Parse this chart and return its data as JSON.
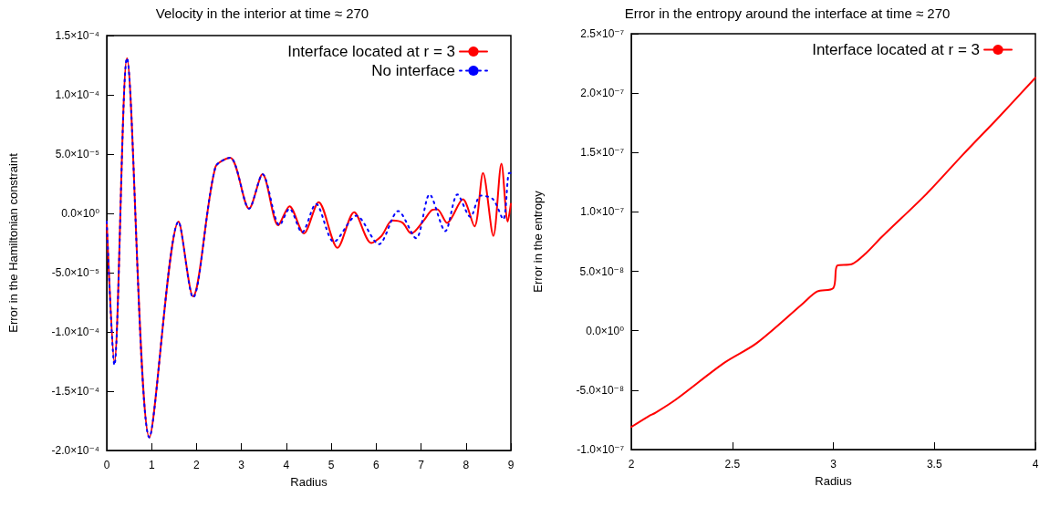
{
  "chart_data": [
    {
      "type": "line",
      "title": "Velocity in the interior at time ≈ 270",
      "xlabel": "Radius",
      "ylabel": "Error in the Hamiltonian constraint",
      "xlim": [
        0,
        9
      ],
      "xticks": [
        0,
        1,
        2,
        3,
        4,
        5,
        6,
        7,
        8,
        9
      ],
      "ylim": [
        -0.0002,
        0.00015
      ],
      "yticks": [
        {
          "value": -0.0002,
          "label": "-2.0×10⁻⁴"
        },
        {
          "value": -0.00015,
          "label": "-1.5×10⁻⁴"
        },
        {
          "value": -0.0001,
          "label": "-1.0×10⁻⁴"
        },
        {
          "value": -5e-05,
          "label": "-5.0×10⁻⁵"
        },
        {
          "value": 0,
          "label": "0.0×10⁰"
        },
        {
          "value": 5e-05,
          "label": "5.0×10⁻⁵"
        },
        {
          "value": 0.0001,
          "label": "1.0×10⁻⁴"
        },
        {
          "value": 0.00015,
          "label": "1.5×10⁻⁴"
        }
      ],
      "legend": "top right",
      "marker": "none",
      "series": [
        {
          "name": "Interface located at r = 3",
          "color": "#ff0000",
          "line_style": "solid",
          "x": [
            0,
            0.17,
            0.45,
            0.95,
            1.6,
            1.92,
            2.42,
            2.75,
            3.17,
            3.47,
            3.82,
            4.07,
            4.39,
            4.72,
            5.14,
            5.51,
            5.89,
            6.12,
            6.36,
            6.59,
            6.78,
            7.06,
            7.23,
            7.36,
            7.58,
            7.93,
            8.19,
            8.38,
            8.61,
            8.79,
            8.93,
            9
          ],
          "values": [
            -7e-06,
            -0.000126,
            0.000131,
            -0.000189,
            -7e-06,
            -7e-05,
            3.9e-05,
            4.7e-05,
            4e-06,
            3.3e-05,
            -1e-05,
            6e-06,
            -1.7e-05,
            9.5e-06,
            -2.9e-05,
            1e-06,
            -2.5e-05,
            -1.9e-05,
            -6e-06,
            -8e-06,
            -1.7e-05,
            -6e-06,
            2.5e-06,
            3.5e-06,
            -8e-06,
            1.2e-05,
            -1.1e-05,
            3.4e-05,
            -1.9e-05,
            4.2e-05,
            -7e-06,
            8e-06
          ]
        },
        {
          "name": "No interface",
          "color": "#0000ff",
          "line_style": "dotted",
          "x": [
            0,
            0.17,
            0.45,
            0.95,
            1.6,
            1.92,
            2.42,
            2.75,
            3.17,
            3.47,
            3.85,
            4.07,
            4.35,
            4.66,
            5.06,
            5.56,
            6.06,
            6.49,
            6.89,
            7.19,
            7.54,
            7.81,
            8.1,
            8.33,
            8.6,
            8.83,
            8.96,
            9
          ],
          "values": [
            -7e-06,
            -0.000128,
            0.000131,
            -0.000189,
            -7e-06,
            -7.1e-05,
            3.9e-05,
            4.7e-05,
            4e-06,
            3.3e-05,
            -1e-05,
            4e-06,
            -1.6e-05,
            8e-06,
            -2.4e-05,
            -2e-06,
            -2.6e-05,
            2e-06,
            -2.1e-05,
            1.6e-05,
            -1.5e-05,
            1.6e-05,
            -3e-06,
            1.5e-05,
            1.2e-05,
            -5e-06,
            3.4e-05,
            3.4e-05
          ]
        }
      ]
    },
    {
      "type": "line",
      "title": "Error in the entropy around the interface at time ≈ 270",
      "xlabel": "Radius",
      "ylabel": "Error in the entropy",
      "xlim": [
        2,
        4
      ],
      "xticks": [
        2,
        2.5,
        3,
        3.5,
        4
      ],
      "ylim": [
        -1e-07,
        2.5e-07
      ],
      "yticks": [
        {
          "value": -1e-07,
          "label": "-1.0×10⁻⁷"
        },
        {
          "value": -5e-08,
          "label": "-5.0×10⁻⁸"
        },
        {
          "value": 0,
          "label": "0.0×10⁰"
        },
        {
          "value": 5e-08,
          "label": "5.0×10⁻⁸"
        },
        {
          "value": 1e-07,
          "label": "1.0×10⁻⁷"
        },
        {
          "value": 1.5e-07,
          "label": "1.5×10⁻⁷"
        },
        {
          "value": 2e-07,
          "label": "2.0×10⁻⁷"
        },
        {
          "value": 2.5e-07,
          "label": "2.5×10⁻⁷"
        }
      ],
      "legend": "top right",
      "marker": "none",
      "series": [
        {
          "name": "Interface located at r = 3",
          "color": "#ff0000",
          "line_style": "solid",
          "x": [
            2,
            2.085,
            2.12,
            2.22,
            2.46,
            2.62,
            2.85,
            2.92,
            3.0,
            3.02,
            3.09,
            3.16,
            3.24,
            3.46,
            3.64,
            3.82,
            4.0
          ],
          "values": [
            -8.1e-08,
            -7.2e-08,
            -6.9e-08,
            -5.8e-08,
            -2.7e-08,
            -1.05e-08,
            2.3e-08,
            3.3e-08,
            3.6e-08,
            5.5e-08,
            5.6e-08,
            6.5e-08,
            7.9e-08,
            1.15e-07,
            1.48e-07,
            1.8e-07,
            2.13e-07
          ]
        }
      ]
    }
  ]
}
